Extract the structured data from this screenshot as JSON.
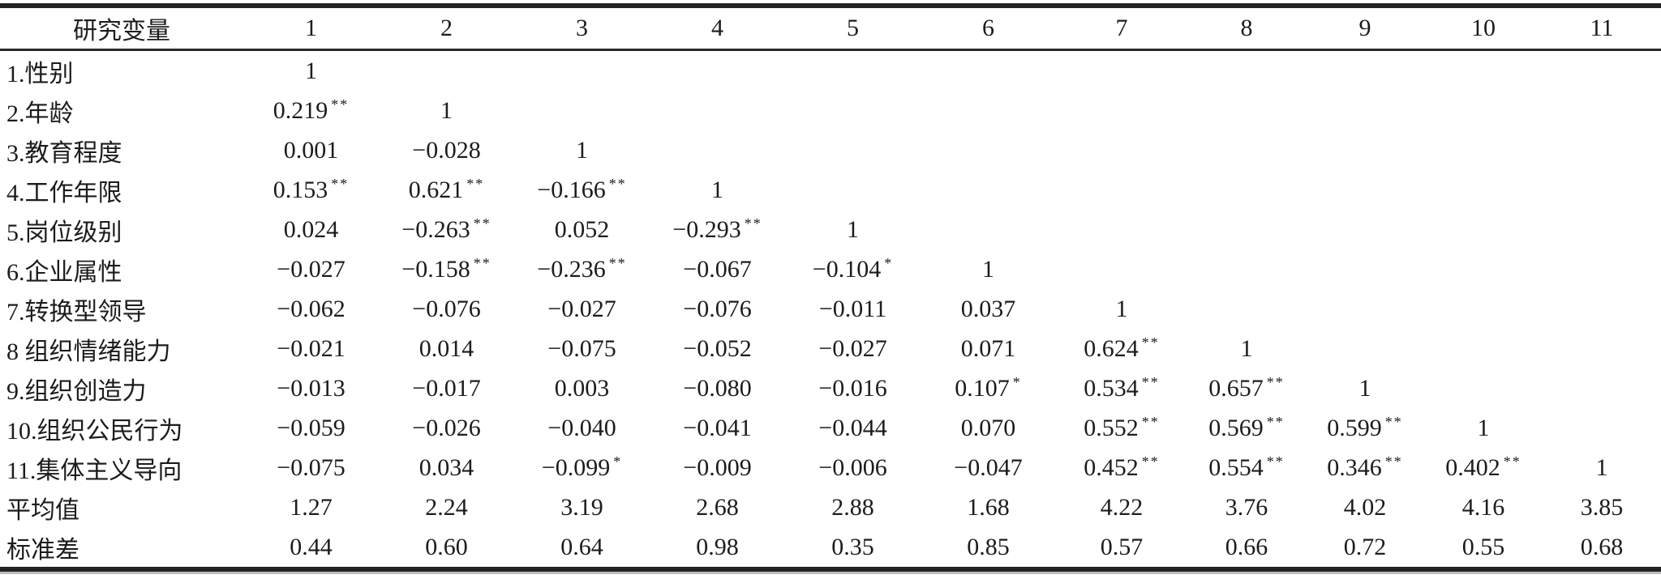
{
  "colors": {
    "ink": "#1c1c1c",
    "background": "#ffffff"
  },
  "table": {
    "header": [
      "研究变量",
      "1",
      "2",
      "3",
      "4",
      "5",
      "6",
      "7",
      "8",
      "9",
      "10",
      "11"
    ],
    "rows": [
      {
        "label": "1.性别",
        "values": [
          "1",
          "",
          "",
          "",
          "",
          "",
          "",
          "",
          "",
          "",
          ""
        ]
      },
      {
        "label": "2.年龄",
        "values": [
          "0.219**",
          "1",
          "",
          "",
          "",
          "",
          "",
          "",
          "",
          "",
          ""
        ]
      },
      {
        "label": "3.教育程度",
        "values": [
          "0.001",
          "−0.028",
          "1",
          "",
          "",
          "",
          "",
          "",
          "",
          "",
          ""
        ]
      },
      {
        "label": "4.工作年限",
        "values": [
          "0.153**",
          "0.621**",
          "−0.166**",
          "1",
          "",
          "",
          "",
          "",
          "",
          "",
          ""
        ]
      },
      {
        "label": "5.岗位级别",
        "values": [
          "0.024",
          "−0.263**",
          "0.052",
          "−0.293**",
          "1",
          "",
          "",
          "",
          "",
          "",
          ""
        ]
      },
      {
        "label": "6.企业属性",
        "values": [
          "−0.027",
          "−0.158**",
          "−0.236**",
          "−0.067",
          "−0.104*",
          "1",
          "",
          "",
          "",
          "",
          ""
        ]
      },
      {
        "label": "7.转换型领导",
        "values": [
          "−0.062",
          "−0.076",
          "−0.027",
          "−0.076",
          "−0.011",
          "0.037",
          "1",
          "",
          "",
          "",
          ""
        ]
      },
      {
        "label": "8 组织情绪能力",
        "values": [
          "−0.021",
          "0.014",
          "−0.075",
          "−0.052",
          "−0.027",
          "0.071",
          "0.624**",
          "1",
          "",
          "",
          ""
        ]
      },
      {
        "label": "9.组织创造力",
        "values": [
          "−0.013",
          "−0.017",
          "0.003",
          "−0.080",
          "−0.016",
          "0.107*",
          "0.534**",
          "0.657**",
          "1",
          "",
          ""
        ]
      },
      {
        "label": "10.组织公民行为",
        "values": [
          "−0.059",
          "−0.026",
          "−0.040",
          "−0.041",
          "−0.044",
          "0.070",
          "0.552**",
          "0.569**",
          "0.599**",
          "1",
          ""
        ]
      },
      {
        "label": "11.集体主义导向",
        "values": [
          "−0.075",
          "0.034",
          "−0.099*",
          "−0.009",
          "−0.006",
          "−0.047",
          "0.452**",
          "0.554**",
          "0.346**",
          "0.402**",
          "1"
        ]
      },
      {
        "label": "平均值",
        "values": [
          "1.27",
          "2.24",
          "3.19",
          "2.68",
          "2.88",
          "1.68",
          "4.22",
          "3.76",
          "4.02",
          "4.16",
          "3.85"
        ]
      },
      {
        "label": "标准差",
        "values": [
          "0.44",
          "0.60",
          "0.64",
          "0.98",
          "0.35",
          "0.85",
          "0.57",
          "0.66",
          "0.72",
          "0.55",
          "0.68"
        ]
      }
    ]
  }
}
